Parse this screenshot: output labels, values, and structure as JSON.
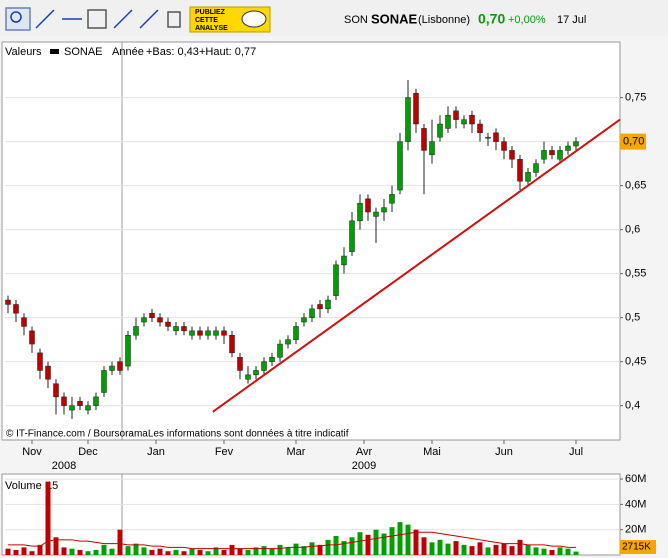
{
  "toolbar": {
    "ad": [
      "PUBLIEZ",
      "CETTE",
      "ANALYSE"
    ]
  },
  "header": {
    "prefix": "SON",
    "name": "SONAE",
    "market": "(Lisbonne)",
    "price": "0,70",
    "change": "+0,00%",
    "date": "17 Jul"
  },
  "legend": {
    "label": "Valeurs",
    "name": "SONAE",
    "period": "Année",
    "low": "+Bas: 0,43",
    "high": "+Haut: 0,77"
  },
  "footer": "© IT-Finance.com / BoursoramaLes informations sont données à titre indicatif",
  "chart_data": [
    {
      "type": "candlestick",
      "up_color": "#00a000",
      "down_color": "#c00000",
      "categories": [
        null,
        null,
        null,
        null,
        null,
        null,
        null,
        null,
        null,
        null,
        null,
        null,
        null,
        null,
        null,
        null,
        null,
        null,
        null,
        null,
        null,
        null,
        null,
        null,
        null,
        null,
        null,
        null,
        null,
        null,
        null,
        null,
        null,
        null,
        null,
        null,
        null,
        null,
        null,
        null,
        null,
        null,
        null,
        null,
        null,
        null,
        null,
        null,
        null,
        null,
        null,
        null,
        null,
        null,
        null,
        null,
        null,
        null,
        null,
        null,
        null,
        null,
        null,
        null,
        null,
        null,
        null,
        null,
        null,
        null,
        null,
        null
      ],
      "open": [
        0.52,
        0.515,
        0.5,
        0.485,
        0.46,
        0.445,
        0.425,
        0.41,
        0.395,
        0.405,
        0.395,
        0.4,
        0.415,
        0.44,
        0.45,
        0.445,
        0.48,
        0.495,
        0.505,
        0.5,
        0.495,
        0.485,
        0.49,
        0.48,
        0.485,
        0.48,
        0.48,
        0.485,
        0.48,
        0.455,
        0.43,
        0.435,
        0.44,
        0.45,
        0.455,
        0.47,
        0.475,
        0.495,
        0.5,
        0.515,
        0.51,
        0.525,
        0.56,
        0.575,
        0.61,
        0.635,
        0.615,
        0.62,
        0.63,
        0.645,
        0.7,
        0.755,
        0.715,
        0.685,
        0.705,
        0.715,
        0.735,
        0.72,
        0.73,
        0.72,
        0.705,
        0.71,
        0.7,
        0.69,
        0.68,
        0.655,
        0.665,
        0.68,
        0.69,
        0.68,
        0.69,
        0.695
      ],
      "high": [
        0.525,
        0.52,
        0.505,
        0.49,
        0.465,
        0.45,
        0.43,
        0.415,
        0.41,
        0.41,
        0.405,
        0.415,
        0.445,
        0.45,
        0.455,
        0.485,
        0.5,
        0.505,
        0.51,
        0.505,
        0.5,
        0.495,
        0.495,
        0.49,
        0.49,
        0.49,
        0.49,
        0.49,
        0.485,
        0.46,
        0.445,
        0.445,
        0.455,
        0.46,
        0.475,
        0.48,
        0.495,
        0.505,
        0.515,
        0.52,
        0.525,
        0.565,
        0.58,
        0.62,
        0.64,
        0.64,
        0.625,
        0.635,
        0.65,
        0.71,
        0.77,
        0.76,
        0.72,
        0.725,
        0.73,
        0.74,
        0.74,
        0.73,
        0.735,
        0.725,
        0.71,
        0.715,
        0.705,
        0.695,
        0.685,
        0.67,
        0.68,
        0.7,
        0.695,
        0.695,
        0.7,
        0.705
      ],
      "low": [
        0.505,
        0.495,
        0.48,
        0.46,
        0.43,
        0.42,
        0.39,
        0.39,
        0.385,
        0.395,
        0.39,
        0.395,
        0.41,
        0.435,
        0.435,
        0.44,
        0.475,
        0.49,
        0.495,
        0.49,
        0.485,
        0.48,
        0.48,
        0.475,
        0.475,
        0.475,
        0.475,
        0.47,
        0.455,
        0.43,
        0.425,
        0.43,
        0.435,
        0.445,
        0.45,
        0.465,
        0.47,
        0.49,
        0.495,
        0.5,
        0.505,
        0.52,
        0.55,
        0.57,
        0.6,
        0.61,
        0.585,
        0.61,
        0.62,
        0.64,
        0.69,
        0.71,
        0.64,
        0.675,
        0.7,
        0.71,
        0.715,
        0.715,
        0.71,
        0.7,
        0.695,
        0.69,
        0.68,
        0.67,
        0.645,
        0.65,
        0.66,
        0.675,
        0.68,
        0.675,
        0.685,
        0.69
      ],
      "close": [
        0.515,
        0.505,
        0.49,
        0.47,
        0.44,
        0.43,
        0.41,
        0.4,
        0.4,
        0.4,
        0.4,
        0.41,
        0.44,
        0.445,
        0.44,
        0.48,
        0.49,
        0.5,
        0.5,
        0.495,
        0.49,
        0.49,
        0.485,
        0.485,
        0.48,
        0.485,
        0.485,
        0.48,
        0.46,
        0.44,
        0.435,
        0.44,
        0.45,
        0.455,
        0.47,
        0.475,
        0.49,
        0.5,
        0.51,
        0.51,
        0.52,
        0.56,
        0.57,
        0.61,
        0.63,
        0.62,
        0.62,
        0.625,
        0.64,
        0.7,
        0.75,
        0.72,
        0.69,
        0.7,
        0.72,
        0.73,
        0.725,
        0.725,
        0.72,
        0.71,
        0.705,
        0.7,
        0.69,
        0.68,
        0.655,
        0.665,
        0.675,
        0.69,
        0.685,
        0.69,
        0.695,
        0.7
      ],
      "xlim": [
        -0.375,
        76.5
      ],
      "ylim": [
        0.361,
        0.795
      ],
      "yticks": [
        {
          "value": 0.4,
          "label": "0,4"
        },
        {
          "value": 0.45,
          "label": "0,45"
        },
        {
          "value": 0.5,
          "label": "0,5"
        },
        {
          "value": 0.55,
          "label": "0,55"
        },
        {
          "value": 0.6,
          "label": "0,6"
        },
        {
          "value": 0.65,
          "label": "0,65"
        },
        {
          "value": 0.7,
          "label": "0,7"
        },
        {
          "value": 0.75,
          "label": "0,75"
        }
      ],
      "xticks": [
        {
          "value": 3,
          "label": "Nov"
        },
        {
          "value": 10,
          "label": "Dec"
        },
        {
          "value": 18.5,
          "label": "Jan"
        },
        {
          "value": 27,
          "label": "Fev"
        },
        {
          "value": 36,
          "label": "Mar"
        },
        {
          "value": 44.5,
          "label": "Avr"
        },
        {
          "value": 53,
          "label": "Mai"
        },
        {
          "value": 62,
          "label": "Jun"
        },
        {
          "value": 71,
          "label": "Jul"
        }
      ],
      "years": [
        {
          "value": 7,
          "label": "2008"
        },
        {
          "value": 44.5,
          "label": "2009"
        }
      ],
      "last_price": {
        "value": 0.7,
        "label": "0,70"
      },
      "trendline": {
        "x": [
          25.6,
          76.5
        ],
        "y": [
          0.393,
          0.725
        ],
        "color": "#d01010"
      },
      "grid": true
    },
    {
      "type": "bar",
      "title": "Volume",
      "series": [
        {
          "name": "Volume",
          "values": [
            5,
            4,
            6,
            3,
            8,
            58,
            14,
            6,
            5,
            4,
            3,
            4,
            8,
            5,
            20,
            7,
            9,
            6,
            4,
            5,
            3,
            4,
            3,
            5,
            4,
            3,
            6,
            4,
            8,
            5,
            4,
            6,
            7,
            5,
            8,
            6,
            9,
            7,
            10,
            8,
            12,
            15,
            11,
            14,
            18,
            16,
            20,
            17,
            22,
            26,
            24,
            20,
            14,
            10,
            12,
            9,
            11,
            8,
            7,
            10,
            6,
            8,
            9,
            7,
            12,
            8,
            6,
            5,
            4,
            6,
            5,
            2.715
          ]
        },
        {
          "name": "15",
          "type": "line",
          "color": "#c00000",
          "values": [
            8,
            8,
            8,
            7,
            7,
            11,
            12,
            12,
            12,
            11,
            11,
            10,
            9,
            9,
            9,
            8,
            8,
            8,
            7,
            7,
            6,
            6,
            6,
            5,
            5,
            5,
            5,
            5,
            5,
            5,
            5,
            5,
            5,
            5,
            5,
            6,
            6,
            6,
            7,
            7,
            8,
            8,
            9,
            10,
            11,
            12,
            13,
            14,
            15,
            16,
            17,
            18,
            18,
            18,
            17,
            16,
            15,
            14,
            13,
            12,
            11,
            10,
            9,
            9,
            9,
            8,
            8,
            8,
            7,
            7,
            6,
            6
          ]
        }
      ],
      "ylim": [
        0,
        64
      ],
      "yticks": [
        {
          "value": 20,
          "label": "20M"
        },
        {
          "value": 40,
          "label": "40M"
        },
        {
          "value": 60,
          "label": "60M"
        }
      ],
      "last_volume": {
        "value": 2.715,
        "label": "2715K"
      },
      "grid": true
    }
  ]
}
